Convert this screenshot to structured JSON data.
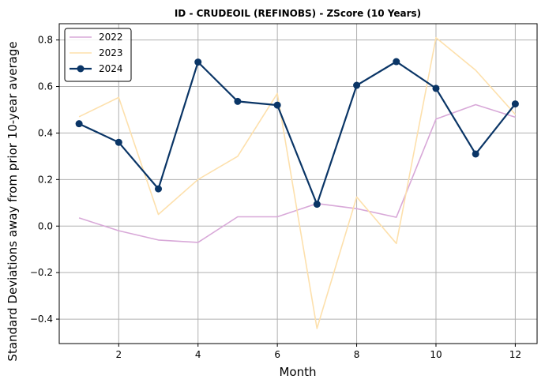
{
  "chart_data": {
    "type": "line",
    "title": "ID - CRUDEOIL (REFINOBS) - ZScore (10 Years)",
    "xlabel": "Month",
    "ylabel": "Standard Deviations away from prior 10-year average",
    "xlim": [
      0.5,
      12.55
    ],
    "ylim": [
      -0.505,
      0.87
    ],
    "x_ticks": [
      2,
      4,
      6,
      8,
      10,
      12
    ],
    "y_ticks": [
      -0.4,
      -0.2,
      0.0,
      0.2,
      0.4,
      0.6,
      0.8
    ],
    "x_tick_labels": [
      "2",
      "4",
      "6",
      "8",
      "10",
      "12"
    ],
    "y_tick_labels": [
      "−0.4",
      "−0.2",
      "0.0",
      "0.2",
      "0.4",
      "0.6",
      "0.8"
    ],
    "grid": true,
    "legend_position": "top-left",
    "x": [
      1,
      2,
      3,
      4,
      5,
      6,
      7,
      8,
      9,
      10,
      11,
      12
    ],
    "series": [
      {
        "name": "2022",
        "color": "#d8a8d8",
        "markers": false,
        "values": [
          0.035,
          -0.02,
          -0.06,
          -0.07,
          0.04,
          0.04,
          0.097,
          0.075,
          0.038,
          0.46,
          0.522,
          0.468
        ]
      },
      {
        "name": "2023",
        "color": "#fde0ac",
        "markers": false,
        "values": [
          0.47,
          0.553,
          0.05,
          0.2,
          0.3,
          0.57,
          -0.44,
          0.125,
          -0.075,
          0.81,
          0.67,
          0.48
        ]
      },
      {
        "name": "2024",
        "color": "#0a3566",
        "markers": true,
        "values": [
          0.44,
          0.36,
          0.16,
          0.705,
          0.536,
          0.52,
          0.094,
          0.605,
          0.707,
          0.592,
          0.31,
          0.525
        ]
      }
    ]
  }
}
